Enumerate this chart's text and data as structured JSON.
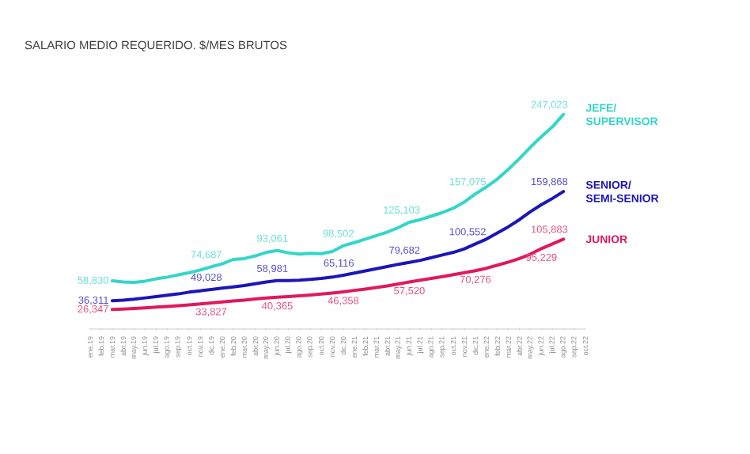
{
  "chart_data": {
    "type": "line",
    "title": "SALARIO MEDIO REQUERIDO. $/MES BRUTOS",
    "categories": [
      "ene.19",
      "feb.19",
      "mar.19",
      "abr.19",
      "may.19",
      "jun.19",
      "jul.19",
      "ago.19",
      "sep.19",
      "oct.19",
      "nov.19",
      "dic.19",
      "ene.20",
      "feb.20",
      "mar.20",
      "abr.20",
      "may.20",
      "jun.20",
      "jul.20",
      "ago.20",
      "sep.20",
      "oct.20",
      "nov.20",
      "dic.20",
      "ene.21",
      "feb.21",
      "mar.21",
      "abr.21",
      "may.21",
      "jun.21",
      "jul.21",
      "ago.21",
      "sep.21",
      "oct.21",
      "nov.21",
      "dic.21",
      "ene.22",
      "feb.22",
      "mar.22",
      "abr.22",
      "may.22",
      "jun.22",
      "jul.22",
      "ago.22",
      "sep.22",
      "oct.22"
    ],
    "tick_labels": "x",
    "series": [
      {
        "name": "JEFE/ SUPERVISOR",
        "color": "#33d6c8",
        "values": [
          null,
          null,
          58830,
          57500,
          57000,
          58500,
          61000,
          63000,
          65500,
          68000,
          71000,
          74687,
          78000,
          83000,
          84000,
          87000,
          91000,
          93061,
          90500,
          89000,
          90000,
          89500,
          92000,
          98502,
          102000,
          106000,
          110000,
          114000,
          119000,
          125103,
          128000,
          132000,
          136000,
          141000,
          148000,
          157075,
          165000,
          174000,
          185000,
          197000,
          210000,
          222000,
          233000,
          247023,
          null,
          null
        ],
        "value_labels": [
          null,
          null,
          "58,830",
          null,
          null,
          null,
          null,
          null,
          null,
          null,
          null,
          "74,687",
          null,
          null,
          null,
          null,
          null,
          "93,061",
          null,
          null,
          null,
          null,
          null,
          "98,502",
          null,
          null,
          null,
          null,
          null,
          "125,103",
          null,
          null,
          null,
          null,
          null,
          "157,075",
          null,
          null,
          null,
          null,
          null,
          null,
          null,
          "247,023",
          null,
          null
        ]
      },
      {
        "name": "SENIOR/ SEMI-SENIOR",
        "color": "#1c16b8",
        "values": [
          null,
          null,
          36311,
          37000,
          38000,
          39500,
          41000,
          42500,
          44000,
          46000,
          47500,
          49028,
          50500,
          52000,
          53500,
          55500,
          57500,
          58981,
          59000,
          59500,
          60500,
          61500,
          63000,
          65116,
          67500,
          70000,
          72500,
          75000,
          77500,
          79682,
          82000,
          85000,
          88000,
          91000,
          95000,
          100552,
          106000,
          113000,
          120000,
          128000,
          137000,
          145000,
          152000,
          159868,
          null,
          null
        ],
        "value_labels": [
          null,
          null,
          "36,311",
          null,
          null,
          null,
          null,
          null,
          null,
          null,
          null,
          "49,028",
          null,
          null,
          null,
          null,
          null,
          "58,981",
          null,
          null,
          null,
          null,
          null,
          "65,116",
          null,
          null,
          null,
          null,
          null,
          "79,682",
          null,
          null,
          null,
          null,
          null,
          "100,552",
          null,
          null,
          null,
          null,
          null,
          null,
          null,
          "159,868",
          null,
          null
        ]
      },
      {
        "name": "JUNIOR",
        "color": "#e0185c",
        "values": [
          null,
          null,
          26347,
          26800,
          27500,
          28200,
          29000,
          29800,
          30600,
          31500,
          32600,
          33827,
          35000,
          36000,
          37000,
          38200,
          39300,
          40365,
          41000,
          41800,
          42800,
          43800,
          45000,
          46358,
          48000,
          49500,
          51200,
          53000,
          55200,
          57520,
          59500,
          61500,
          63500,
          65800,
          68000,
          70276,
          73000,
          76500,
          80000,
          84000,
          89000,
          95229,
          100500,
          105883,
          null,
          null
        ],
        "value_labels": [
          null,
          null,
          "26,347",
          null,
          null,
          null,
          null,
          null,
          null,
          null,
          null,
          "33,827",
          null,
          null,
          null,
          null,
          null,
          "40,365",
          null,
          null,
          null,
          null,
          null,
          "46,358",
          null,
          null,
          null,
          null,
          null,
          "57,520",
          null,
          null,
          null,
          null,
          null,
          "70,276",
          null,
          null,
          null,
          null,
          null,
          "95,229",
          null,
          "105,883",
          null,
          null
        ]
      }
    ]
  }
}
